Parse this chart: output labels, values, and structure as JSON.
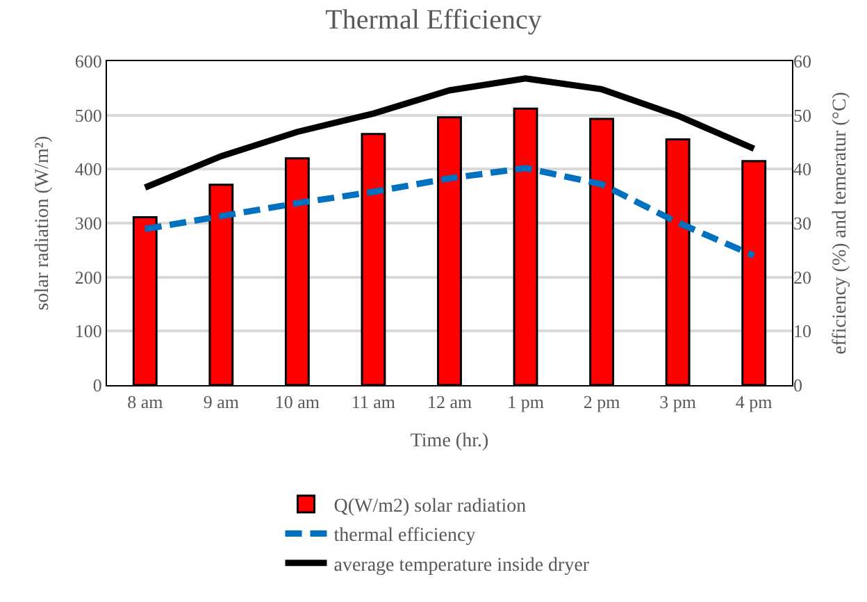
{
  "chart_data": {
    "type": "bar",
    "title": "Thermal Efficiency",
    "xlabel": "Time (hr.)",
    "ylabel": "solar radiation (W/m²)",
    "y2label": "efficiency (%) and temeratur (°C)",
    "categories": [
      "8 am",
      "9 am",
      "10 am",
      "11 am",
      "12 am",
      "1 pm",
      "2 pm",
      "3 pm",
      "4 pm"
    ],
    "series": [
      {
        "name": "Q(W/m2) solar radiation",
        "color": "#ff0000",
        "values": [
          311,
          371,
          420,
          465,
          496,
          512,
          493,
          455,
          415
        ]
      },
      {
        "name": "thermal efficiency",
        "type": "line",
        "axis": "y2",
        "line_style": "dashed",
        "color": "#0070c0",
        "values": [
          28.9,
          31.3,
          33.7,
          35.8,
          38.3,
          40.2,
          37.2,
          30.1,
          24.0
        ]
      },
      {
        "name": "average temperature inside dryer",
        "type": "line",
        "axis": "y2",
        "line_style": "solid",
        "color": "#000000",
        "values": [
          36.6,
          42.4,
          46.9,
          50.3,
          54.6,
          56.8,
          54.8,
          49.9,
          43.8
        ]
      }
    ],
    "ylim": [
      0,
      600
    ],
    "yticks": [
      0,
      100,
      200,
      300,
      400,
      500,
      600
    ],
    "y2lim": [
      0,
      60
    ],
    "y2ticks": [
      0,
      10,
      20,
      30,
      40,
      50,
      60
    ],
    "grid": "y",
    "legend": "bottom",
    "marker": "none"
  }
}
